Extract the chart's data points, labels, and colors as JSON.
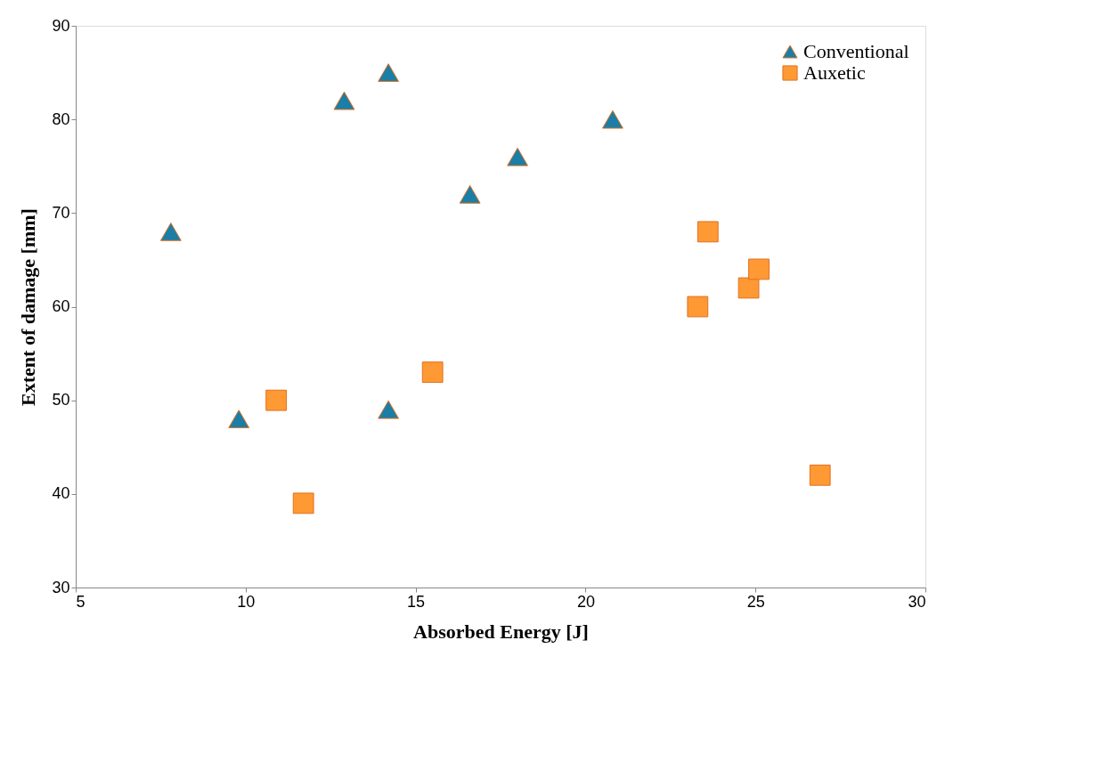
{
  "chart_data": {
    "type": "scatter",
    "xlabel": "Absorbed Energy [J]",
    "ylabel": "Extent of damage [mm]",
    "xlim": [
      5,
      30
    ],
    "xticks": [
      5,
      10,
      15,
      20,
      25,
      30
    ],
    "ylim": [
      30,
      90
    ],
    "yticks": [
      30,
      40,
      50,
      60,
      70,
      80,
      90
    ],
    "grid": false,
    "legend": "top right",
    "series": [
      {
        "name": "Conventional",
        "color": "#1b7ea6",
        "marker": "triangle",
        "x": [
          7.8,
          9.8,
          12.9,
          14.2,
          14.2,
          16.6,
          18.0,
          20.8
        ],
        "values": [
          68,
          48,
          82,
          85,
          49,
          72,
          76,
          80
        ]
      },
      {
        "name": "Auxetic",
        "color": "#ff9933",
        "marker": "square",
        "x": [
          10.9,
          11.7,
          15.5,
          23.3,
          23.6,
          24.8,
          25.1,
          26.9
        ],
        "values": [
          50,
          39,
          53,
          60,
          68,
          62,
          64,
          42
        ]
      }
    ]
  }
}
